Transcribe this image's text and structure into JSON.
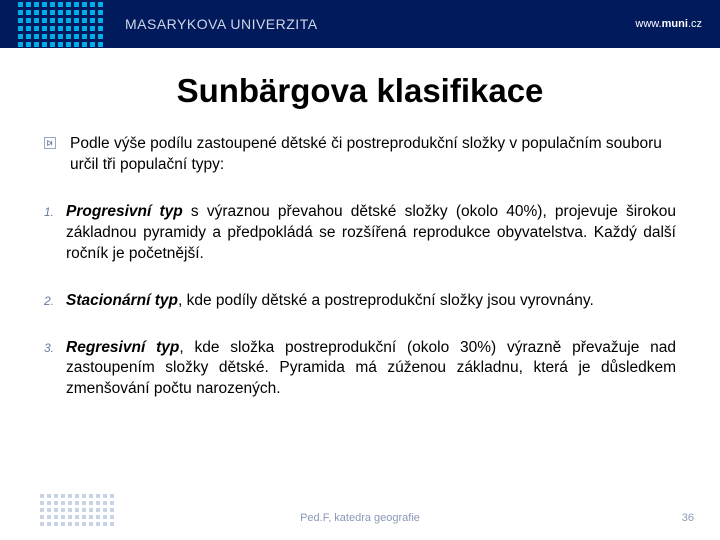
{
  "header": {
    "university": "MASARYKOVA UNIVERZITA",
    "url_prefix": "www.",
    "url_bold": "muni",
    "url_suffix": ".cz"
  },
  "title": "Sunbärgova klasifikace",
  "intro": "Podle výše podílu zastoupené dětské či postreprodukční složky v populačním souboru určil tři populační typy:",
  "items": [
    {
      "num": "1.",
      "lead": "Progresivní typ",
      "rest": " s výraznou převahou dětské složky (okolo 40%), projevuje širokou základnou pyramidy a předpokládá se rozšířená reprodukce obyvatelstva. Každý další ročník je početnější."
    },
    {
      "num": "2.",
      "lead": "Stacionární typ",
      "rest": ", kde podíly dětské a postreprodukční složky jsou vyrovnány."
    },
    {
      "num": "3.",
      "lead": "Regresivní typ",
      "rest": ", kde složka postreprodukční (okolo 30%) výrazně převažuje nad zastoupením složky dětské. Pyramida má zúženou základnu, která je důsledkem zmenšování počtu narozených."
    }
  ],
  "footer": "Ped.F, katedra geografie",
  "page": "36"
}
